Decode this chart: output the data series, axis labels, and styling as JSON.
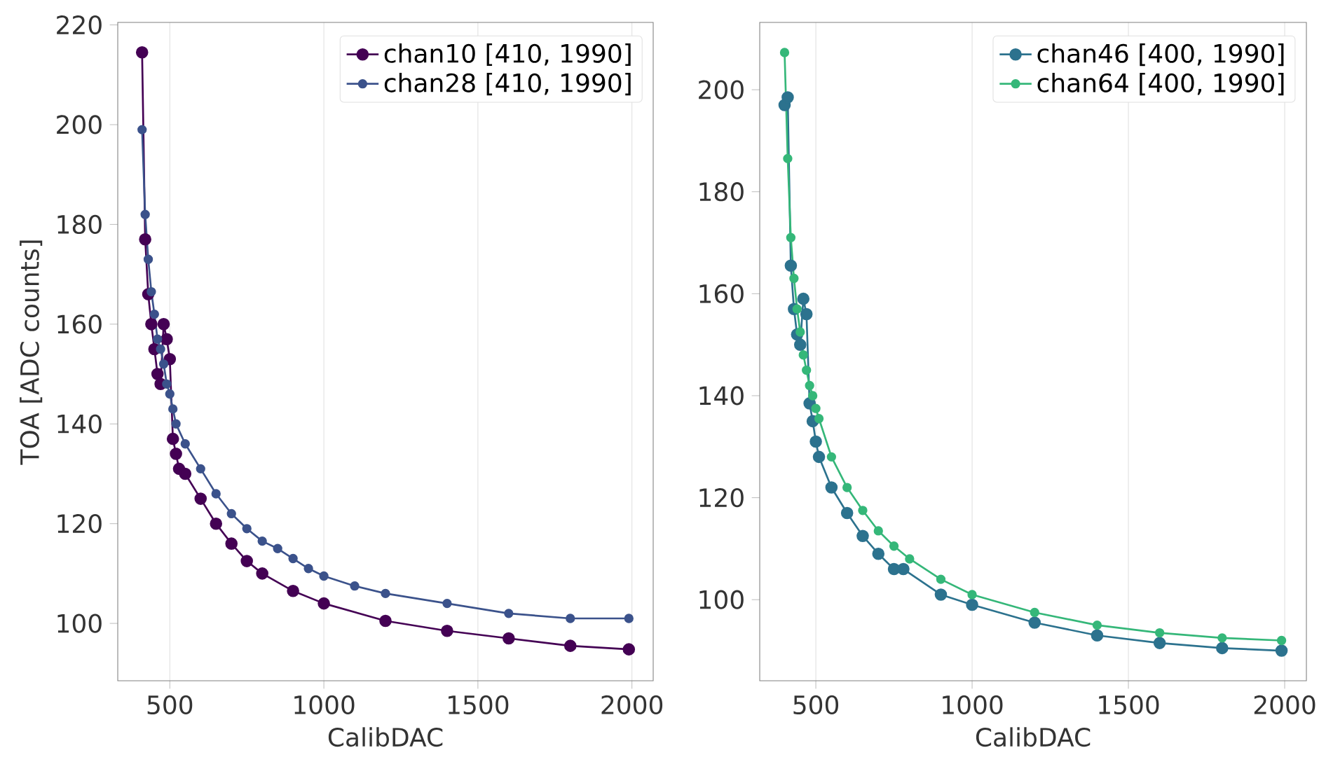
{
  "chart_data": [
    {
      "type": "line",
      "xlabel": "CalibDAC",
      "ylabel": "TOA [ADC counts]",
      "xlim": [
        331,
        2069
      ],
      "ylim": [
        88.5,
        220.5
      ],
      "xticks": [
        500,
        1000,
        1500,
        2000
      ],
      "yticks": [
        100,
        120,
        140,
        160,
        180,
        200,
        220
      ],
      "grid": "x",
      "legend": "top right",
      "marker": "circle",
      "line_style": "solid",
      "series": [
        {
          "name": "chan10 [410, 1990]",
          "color": "#440154",
          "x": [
            410,
            420,
            430,
            440,
            450,
            460,
            470,
            480,
            490,
            500,
            510,
            520,
            530,
            550,
            600,
            650,
            700,
            750,
            800,
            900,
            1000,
            1200,
            1400,
            1600,
            1800,
            1990
          ],
          "values": [
            214.5,
            177,
            166,
            160,
            155,
            150,
            148,
            160,
            157,
            153,
            137,
            134,
            131,
            130,
            125,
            120,
            116,
            112.5,
            110,
            106.5,
            104,
            100.5,
            98.5,
            97,
            95.5,
            94.8
          ]
        },
        {
          "name": "chan28 [410, 1990]",
          "color": "#3b528b",
          "x": [
            410,
            420,
            430,
            440,
            450,
            460,
            470,
            480,
            490,
            500,
            510,
            520,
            550,
            600,
            650,
            700,
            750,
            800,
            850,
            900,
            950,
            1000,
            1100,
            1200,
            1400,
            1600,
            1800,
            1990
          ],
          "values": [
            199,
            182,
            173,
            166.5,
            162,
            157,
            155,
            152,
            148,
            146,
            143,
            140,
            136,
            131,
            126,
            122,
            119,
            116.5,
            115,
            113,
            111,
            109.5,
            107.5,
            106,
            104,
            102,
            101,
            101
          ]
        }
      ]
    },
    {
      "type": "line",
      "xlabel": "CalibDAC",
      "xlim": [
        320.5,
        2069.5
      ],
      "ylim": [
        84.1,
        213.2
      ],
      "xticks": [
        500,
        1000,
        1500,
        2000
      ],
      "yticks": [
        100,
        120,
        140,
        160,
        180,
        200
      ],
      "grid": "x",
      "legend": "top right",
      "marker": "circle",
      "line_style": "solid",
      "series": [
        {
          "name": "chan46 [400, 1990]",
          "color": "#2c728e",
          "x": [
            400,
            410,
            420,
            430,
            440,
            450,
            460,
            470,
            480,
            490,
            500,
            510,
            550,
            600,
            650,
            700,
            750,
            780,
            900,
            1000,
            1200,
            1400,
            1600,
            1800,
            1990
          ],
          "values": [
            197,
            198.5,
            165.5,
            157,
            152,
            150,
            159,
            156,
            138.5,
            135,
            131,
            128,
            122,
            117,
            112.5,
            109,
            106,
            106,
            101,
            99,
            95.5,
            93,
            91.5,
            90.5,
            90
          ]
        },
        {
          "name": "chan64 [400, 1990]",
          "color": "#35b779",
          "x": [
            400,
            410,
            420,
            430,
            440,
            450,
            460,
            470,
            480,
            490,
            500,
            510,
            550,
            600,
            650,
            700,
            750,
            800,
            900,
            1000,
            1200,
            1400,
            1600,
            1800,
            1990
          ],
          "values": [
            207.3,
            186.5,
            171,
            163,
            157,
            152.5,
            148,
            145,
            142,
            140,
            137.5,
            135.5,
            128,
            122,
            117.5,
            113.5,
            110.5,
            108,
            104,
            101,
            97.5,
            95,
            93.5,
            92.5,
            92
          ]
        }
      ]
    }
  ]
}
